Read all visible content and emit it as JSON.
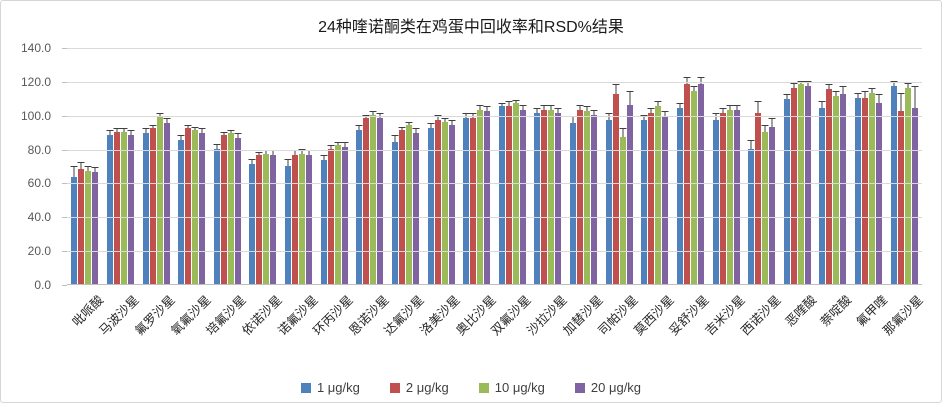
{
  "chart_data": {
    "type": "bar",
    "title": "24种喹诺酮类在鸡蛋中回收率和RSD%结果",
    "xlabel": "",
    "ylabel": "",
    "ylim": [
      0,
      140
    ],
    "y_tick_step": 20,
    "y_tick_labels": [
      "140.0",
      "120.0",
      "100.0",
      "80.0",
      "60.0",
      "40.0",
      "20.0",
      "0.0"
    ],
    "grid": true,
    "legend_position": "bottom",
    "error_bars": "plus",
    "categories": [
      "吡哌酸",
      "马波沙星",
      "氟罗沙星",
      "氧氟沙星",
      "培氟沙星",
      "依诺沙星",
      "诺氟沙星",
      "环丙沙星",
      "恩诺沙星",
      "达氟沙星",
      "洛美沙星",
      "奥比沙星",
      "双氟沙星",
      "沙拉沙星",
      "加替沙星",
      "司帕沙星",
      "莫西沙星",
      "妥舒沙星",
      "吉米沙星",
      "西诺沙星",
      "恶喹酸",
      "萘啶酸",
      "氟甲喹",
      "那氟沙星"
    ],
    "series": [
      {
        "name": "1 μg/kg",
        "color": "#4F81BD",
        "values": [
          63,
          88,
          89,
          85,
          80,
          71,
          70,
          73,
          91,
          84,
          92,
          98,
          105,
          101,
          95,
          97,
          97,
          104,
          97,
          80,
          109,
          104,
          110,
          117
        ],
        "errors": [
          7,
          3,
          3,
          3,
          3,
          3,
          4,
          3,
          3,
          4,
          3,
          3,
          2,
          3,
          4,
          4,
          3,
          3,
          4,
          5,
          3,
          4,
          3,
          3
        ]
      },
      {
        "name": "2 μg/kg",
        "color": "#C0504D",
        "values": [
          68,
          90,
          92,
          92,
          88,
          76,
          76,
          80,
          98,
          91,
          97,
          98,
          105,
          103,
          103,
          112,
          101,
          118,
          101,
          101,
          116,
          115,
          110,
          102
        ],
        "errors": [
          4,
          2,
          2,
          2,
          2,
          2,
          3,
          2,
          2,
          2,
          3,
          3,
          3,
          3,
          3,
          6,
          3,
          4,
          3,
          7,
          3,
          3,
          4,
          11
        ]
      },
      {
        "name": "10 μg/kg",
        "color": "#9BBB59",
        "values": [
          67,
          90,
          99,
          91,
          89,
          77,
          77,
          82,
          100,
          94,
          96,
          103,
          107,
          103,
          102,
          87,
          105,
          114,
          103,
          90,
          118,
          111,
          113,
          116
        ],
        "errors": [
          3,
          2,
          2,
          2,
          2,
          2,
          3,
          2,
          2,
          2,
          2,
          3,
          2,
          3,
          3,
          5,
          3,
          3,
          3,
          4,
          2,
          3,
          3,
          3
        ]
      },
      {
        "name": "20 μg/kg",
        "color": "#8064A2",
        "values": [
          66,
          88,
          95,
          89,
          86,
          76,
          76,
          81,
          98,
          89,
          94,
          102,
          103,
          101,
          100,
          106,
          99,
          118,
          103,
          93,
          117,
          112,
          107,
          104
        ],
        "errors": [
          3,
          3,
          3,
          3,
          3,
          3,
          3,
          3,
          3,
          3,
          3,
          3,
          3,
          3,
          3,
          8,
          3,
          4,
          3,
          5,
          3,
          5,
          5,
          13
        ]
      }
    ],
    "style_colors": {
      "gridline": "#d9d9d9",
      "axis_line": "#bfbfbf",
      "error_bar": "#404040",
      "tick_text": "#595959",
      "category_text": "#262626",
      "title_text": "#1a1a1a"
    }
  }
}
